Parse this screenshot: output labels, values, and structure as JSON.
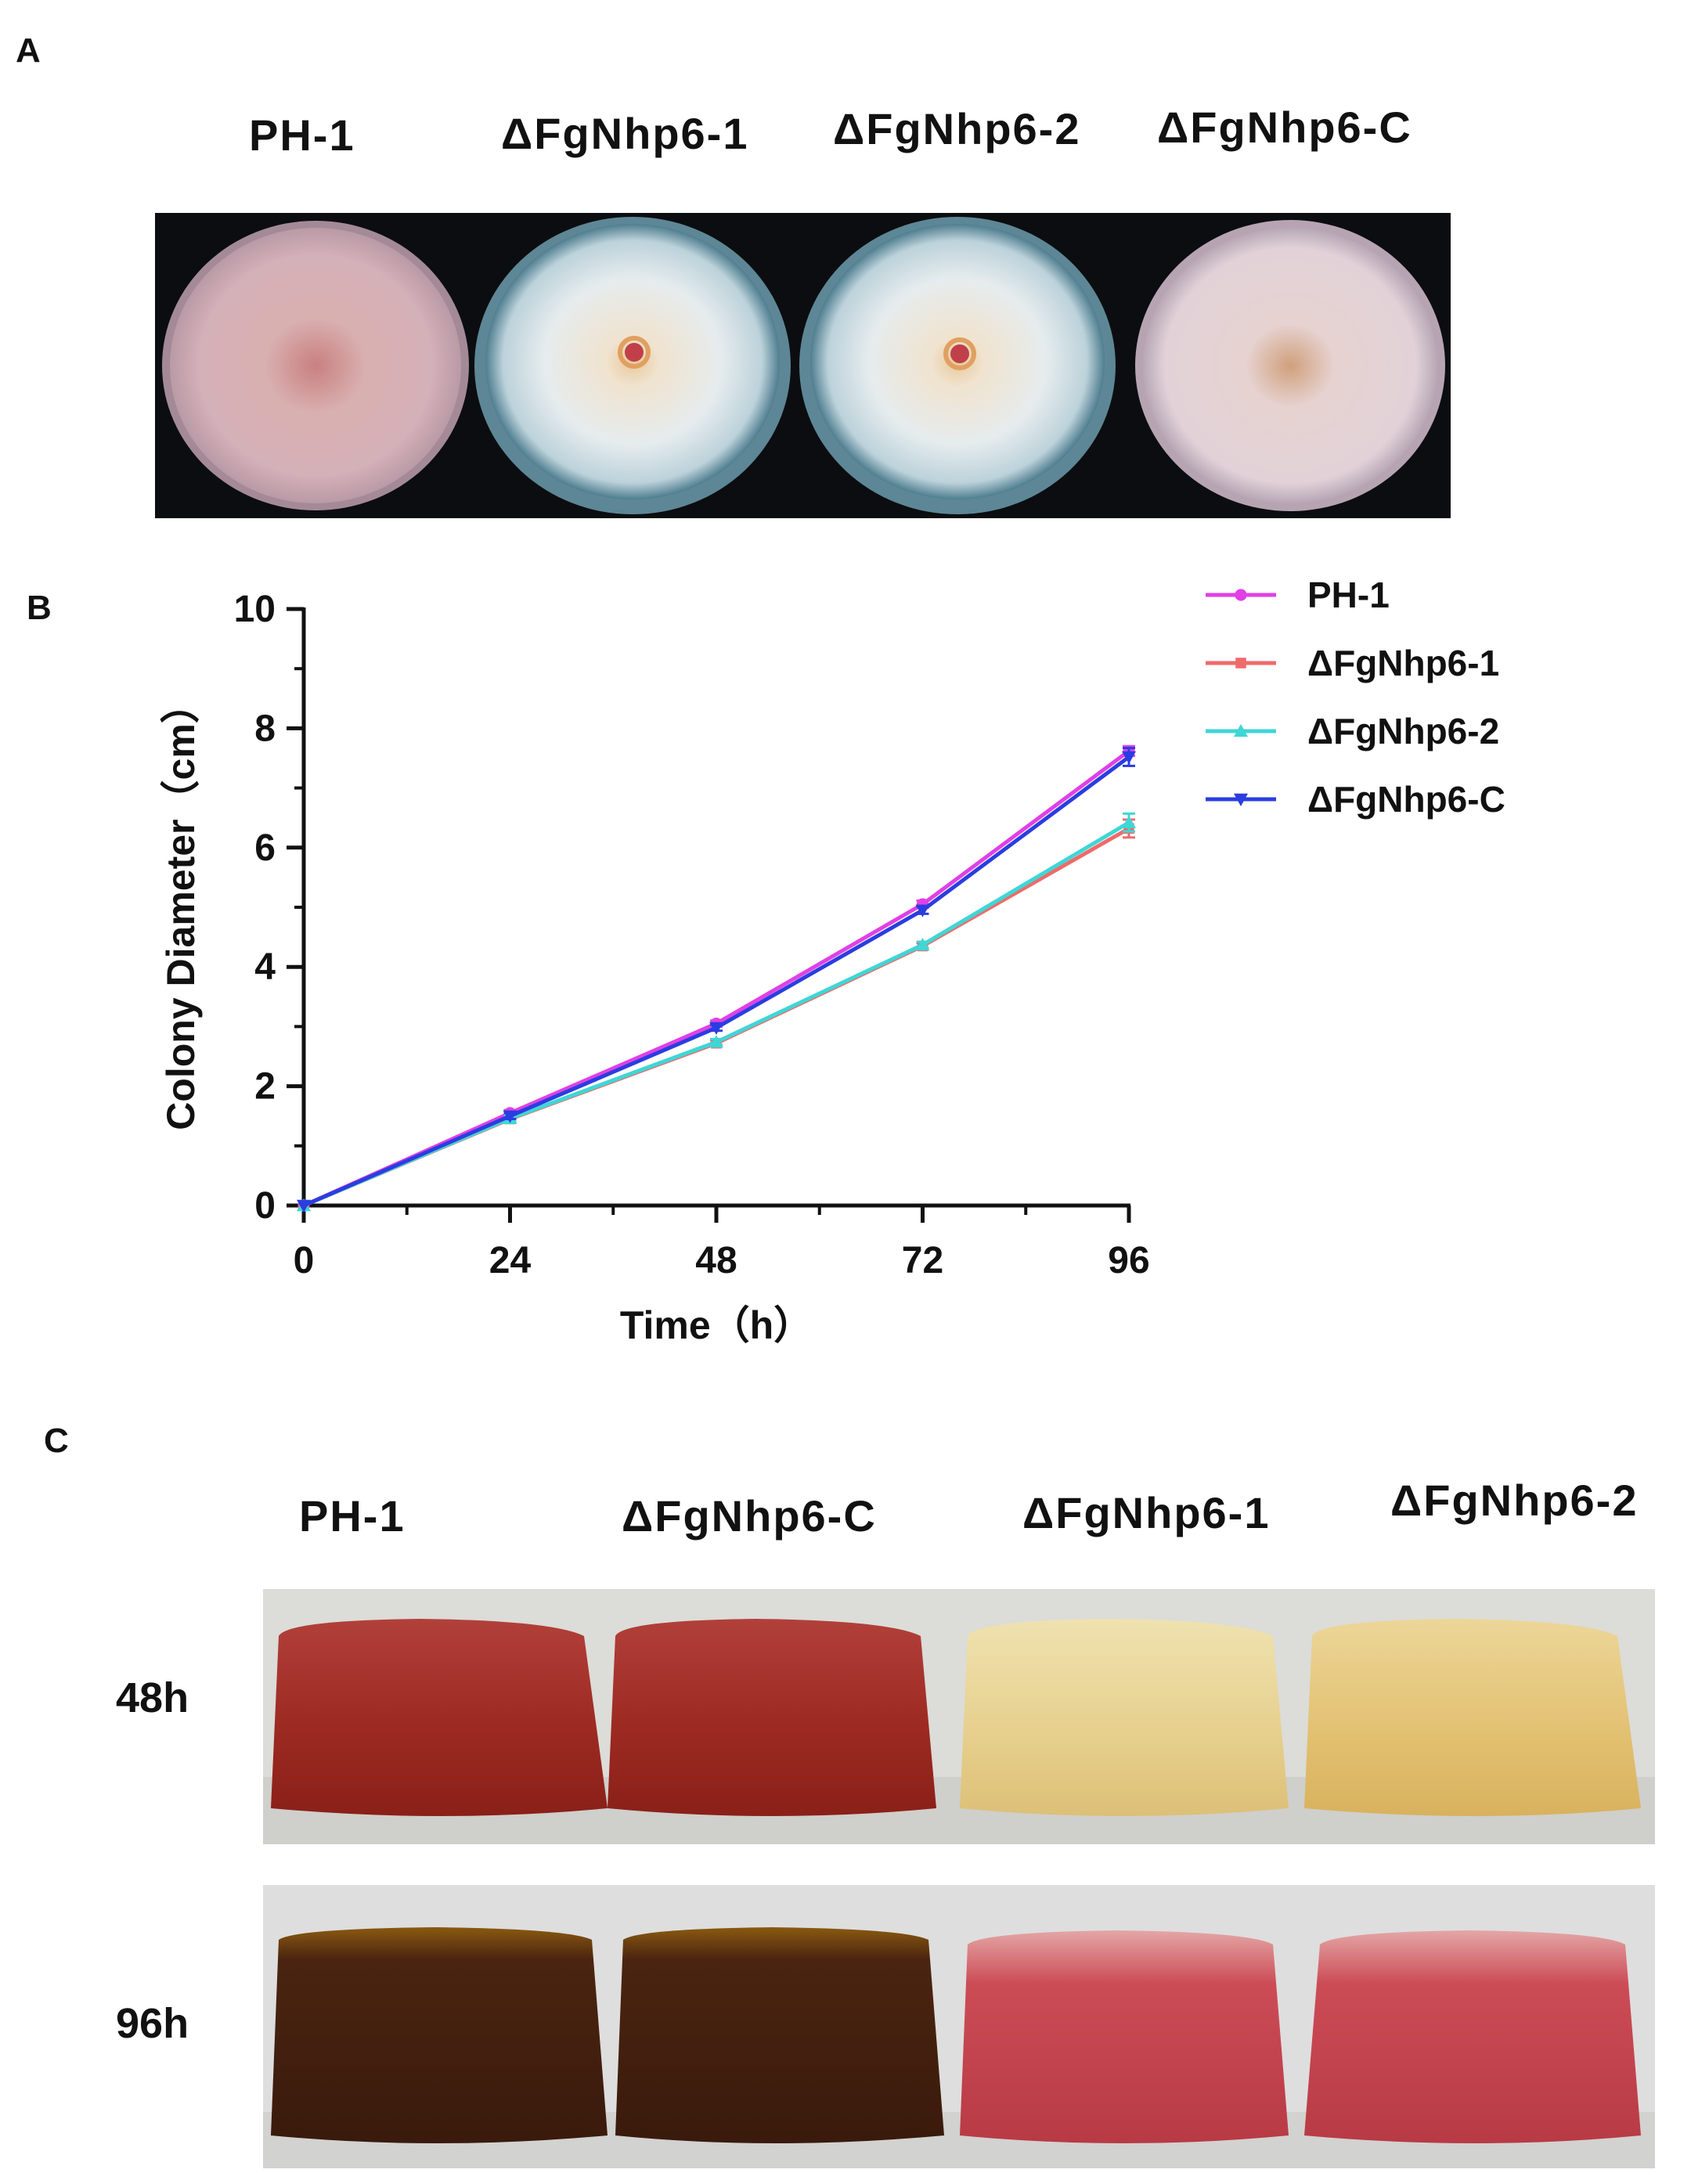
{
  "panel_a": {
    "letter": "A",
    "labels": [
      "PH-1",
      "ΔFgNhp6-1",
      "ΔFgNhp6-2",
      "ΔFgNhp6-C"
    ]
  },
  "panel_b": {
    "letter": "B"
  },
  "panel_c": {
    "letter": "C",
    "labels": [
      "PH-1",
      "ΔFgNhp6-C",
      "ΔFgNhp6-1",
      "ΔFgNhp6-2"
    ],
    "rows": [
      "48h",
      "96h"
    ]
  },
  "colors": {
    "ph1": "#e040e6",
    "nhp6_1": "#ef6a6a",
    "nhp6_2": "#3fd6d6",
    "nhp6_c": "#2b3de0"
  },
  "chart_data": {
    "type": "line",
    "xlabel": "Time（h）",
    "ylabel": "Colony Diameter（cm）",
    "x": [
      0,
      24,
      48,
      72,
      96
    ],
    "xticks": [
      "0",
      "24",
      "48",
      "72",
      "96"
    ],
    "yticks": [
      "0",
      "2",
      "4",
      "6",
      "8",
      "10"
    ],
    "xlim": [
      0,
      96
    ],
    "ylim": [
      0,
      10
    ],
    "legend_position": "top-right",
    "series": [
      {
        "name": "PH-1",
        "values": [
          0,
          1.55,
          3.05,
          5.05,
          7.62
        ],
        "errors": [
          0,
          0.05,
          0.05,
          0.06,
          0.08
        ],
        "marker": "circle",
        "color": "#e040e6"
      },
      {
        "name": "ΔFgNhp6-1",
        "values": [
          0,
          1.45,
          2.72,
          4.35,
          6.32
        ],
        "errors": [
          0,
          0.05,
          0.05,
          0.05,
          0.15
        ],
        "marker": "square",
        "color": "#ef6a6a"
      },
      {
        "name": "ΔFgNhp6-2",
        "values": [
          0,
          1.46,
          2.74,
          4.37,
          6.42
        ],
        "errors": [
          0,
          0.05,
          0.05,
          0.05,
          0.15
        ],
        "marker": "triangle-up",
        "color": "#3fd6d6"
      },
      {
        "name": "ΔFgNhp6-C",
        "values": [
          0,
          1.5,
          2.98,
          4.95,
          7.52
        ],
        "errors": [
          0,
          0.05,
          0.05,
          0.06,
          0.15
        ],
        "marker": "triangle-down",
        "color": "#2b3de0"
      }
    ]
  }
}
